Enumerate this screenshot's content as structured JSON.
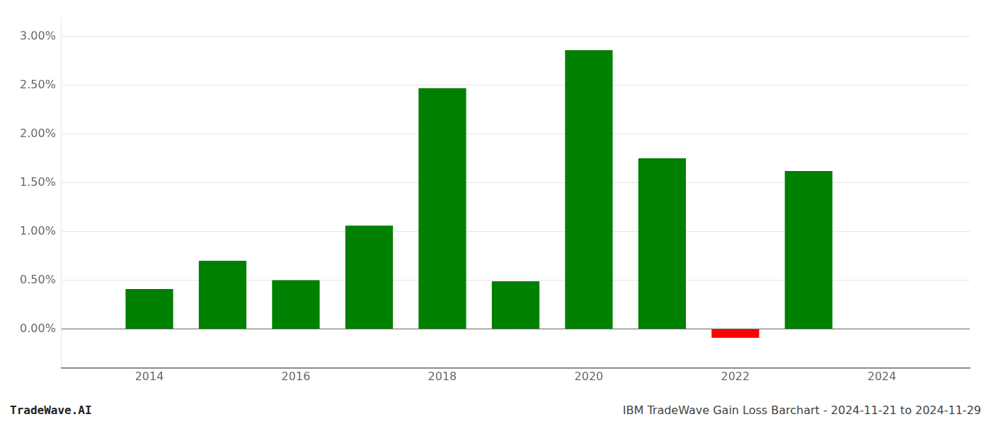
{
  "chart_data": {
    "type": "bar",
    "x": [
      2014,
      2015,
      2016,
      2017,
      2018,
      2019,
      2020,
      2021,
      2022,
      2023
    ],
    "values": [
      0.0041,
      0.007,
      0.005,
      0.0106,
      0.0247,
      0.0049,
      0.0286,
      0.0175,
      -0.0009,
      0.0162
    ],
    "colors": [
      "#008000",
      "#008000",
      "#008000",
      "#008000",
      "#008000",
      "#008000",
      "#008000",
      "#008000",
      "#ff0000",
      "#008000"
    ],
    "xlim": [
      2012.8,
      2025.2
    ],
    "xticks": [
      2014,
      2016,
      2018,
      2020,
      2022,
      2024
    ],
    "ylim": [
      -0.004,
      0.032
    ],
    "yticks": [
      {
        "value": 0.0,
        "label": "0.00%"
      },
      {
        "value": 0.005,
        "label": "0.50%"
      },
      {
        "value": 0.01,
        "label": "1.00%"
      },
      {
        "value": 0.015,
        "label": "1.50%"
      },
      {
        "value": 0.02,
        "label": "2.00%"
      },
      {
        "value": 0.025,
        "label": "2.50%"
      },
      {
        "value": 0.03,
        "label": "3.00%"
      }
    ],
    "grid": "y",
    "annotations": [
      "TradeWave.AI",
      "IBM TradeWave Gain Loss Barchart - 2024-11-21 to 2024-11-29"
    ]
  }
}
